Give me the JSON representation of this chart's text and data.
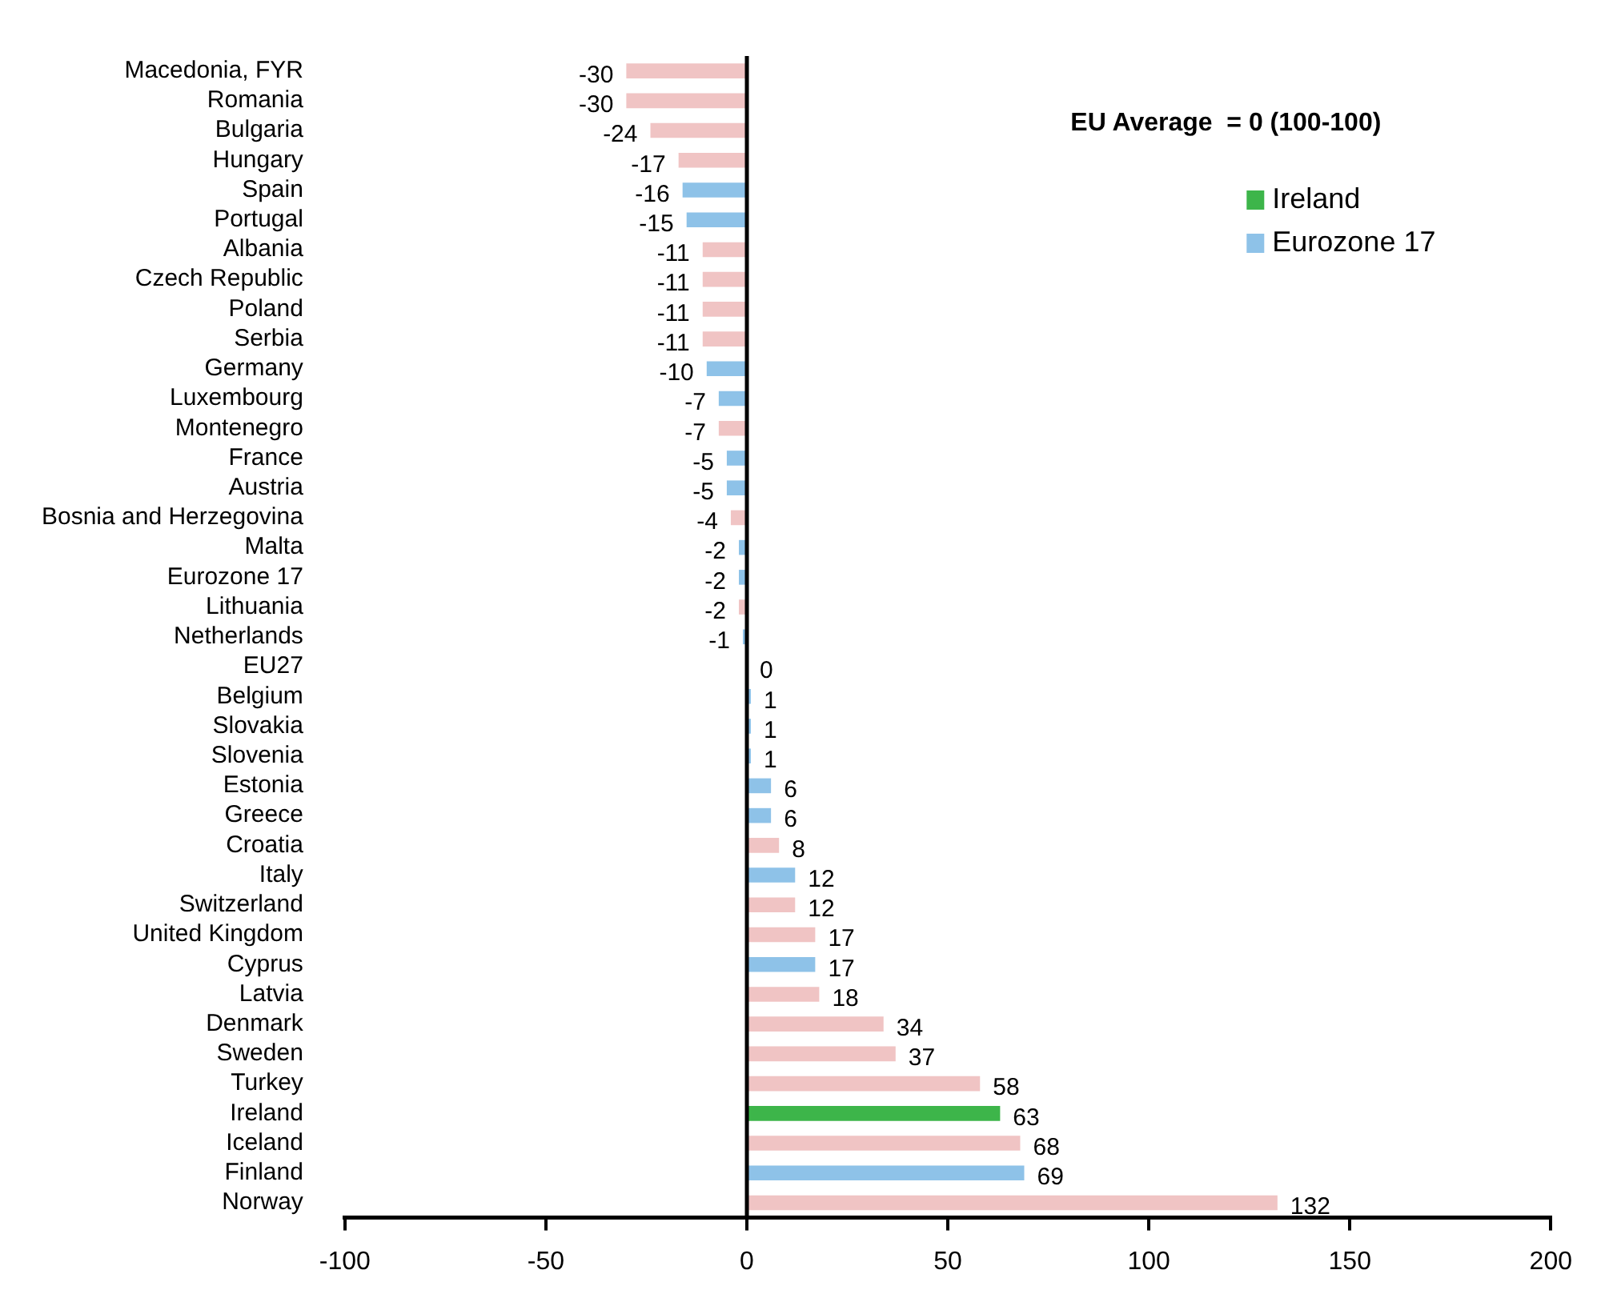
{
  "chart_data": {
    "type": "bar",
    "orientation": "horizontal",
    "categories": [
      "Macedonia, FYR",
      "Romania",
      "Bulgaria",
      "Hungary",
      "Spain",
      "Portugal",
      "Albania",
      "Czech Republic",
      "Poland",
      "Serbia",
      "Germany",
      "Luxembourg",
      "Montenegro",
      "France",
      "Austria",
      "Bosnia and Herzegovina",
      "Malta",
      "Eurozone 17",
      "Lithuania",
      "Netherlands",
      "EU27",
      "Belgium",
      "Slovakia",
      "Slovenia",
      "Estonia",
      "Greece",
      "Croatia",
      "Italy",
      "Switzerland",
      "United Kingdom",
      "Cyprus",
      "Latvia",
      "Denmark",
      "Sweden",
      "Turkey",
      "Ireland",
      "Iceland",
      "Finland",
      "Norway"
    ],
    "series": [
      {
        "name": "Ireland",
        "color": "#3db54a",
        "values": [
          null,
          null,
          null,
          null,
          null,
          null,
          null,
          null,
          null,
          null,
          null,
          null,
          null,
          null,
          null,
          null,
          null,
          null,
          null,
          null,
          null,
          null,
          null,
          null,
          null,
          null,
          null,
          null,
          null,
          null,
          null,
          null,
          null,
          null,
          null,
          63,
          null,
          null,
          null
        ]
      },
      {
        "name": "Eurozone 17",
        "color": "#8ec2e8",
        "values": [
          null,
          null,
          null,
          null,
          -16,
          -15,
          null,
          null,
          null,
          null,
          -10,
          -7,
          null,
          -5,
          -5,
          null,
          -2,
          -2,
          null,
          -1,
          null,
          1,
          1,
          1,
          6,
          6,
          null,
          12,
          null,
          null,
          17,
          null,
          null,
          null,
          null,
          null,
          null,
          69,
          null
        ]
      },
      {
        "color": "#f0c4c4",
        "values": [
          -30,
          -30,
          -24,
          -17,
          null,
          null,
          -11,
          -11,
          -11,
          -11,
          null,
          null,
          -7,
          null,
          null,
          -4,
          null,
          null,
          -2,
          null,
          0,
          null,
          null,
          null,
          null,
          null,
          8,
          null,
          12,
          17,
          null,
          18,
          34,
          37,
          58,
          null,
          68,
          null,
          132
        ]
      }
    ],
    "xlim": [
      -100,
      200
    ],
    "xticks": [
      -100,
      -50,
      0,
      50,
      100,
      150,
      200
    ],
    "ref_lines": [
      {
        "axis": "x",
        "value": 0
      }
    ],
    "data_labels": true,
    "legend": "top right",
    "annotations": [
      "EU Average  = 0 (100-100)"
    ]
  }
}
